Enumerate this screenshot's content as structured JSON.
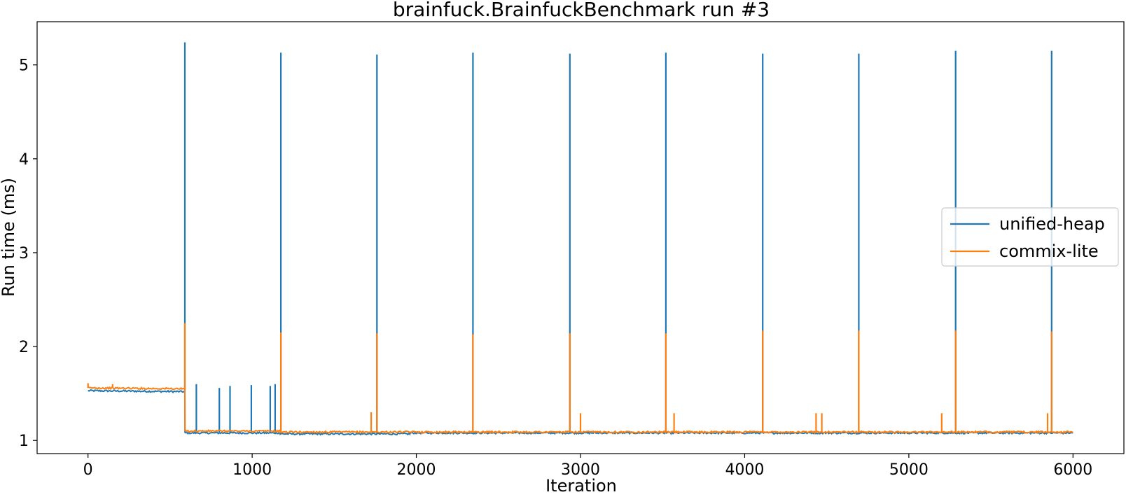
{
  "chart_data": {
    "type": "line",
    "title": "brainfuck.BrainfuckBenchmark run #3",
    "xlabel": "Iteration",
    "ylabel": "Run time (ms)",
    "xlim": [
      -310,
      6310
    ],
    "ylim": [
      0.86,
      5.46
    ],
    "xticks": [
      0,
      1000,
      2000,
      3000,
      4000,
      5000,
      6000
    ],
    "yticks": [
      1,
      2,
      3,
      4,
      5
    ],
    "grid": false,
    "legend_position": "center-right",
    "series": [
      {
        "name": "unified-heap",
        "color": "#1f77b4",
        "baseline": [
          [
            0,
            1.53
          ],
          [
            590,
            1.52
          ],
          [
            591,
            1.08
          ],
          [
            1170,
            1.08
          ],
          [
            1171,
            1.07
          ],
          [
            1960,
            1.07
          ],
          [
            1961,
            1.08
          ],
          [
            6000,
            1.08
          ]
        ],
        "spikes": [
          [
            590,
            5.24
          ],
          [
            660,
            1.6
          ],
          [
            800,
            1.56
          ],
          [
            865,
            1.58
          ],
          [
            995,
            1.59
          ],
          [
            1110,
            1.58
          ],
          [
            1140,
            1.6
          ],
          [
            1175,
            5.13
          ],
          [
            1760,
            5.11
          ],
          [
            2345,
            5.13
          ],
          [
            2935,
            5.12
          ],
          [
            3520,
            5.13
          ],
          [
            4110,
            5.12
          ],
          [
            4695,
            5.12
          ],
          [
            5285,
            5.15
          ],
          [
            5870,
            5.15
          ]
        ]
      },
      {
        "name": "commix-lite",
        "color": "#ff7f0e",
        "baseline": [
          [
            0,
            1.56
          ],
          [
            590,
            1.55
          ],
          [
            591,
            1.1
          ],
          [
            1170,
            1.1
          ],
          [
            1171,
            1.09
          ],
          [
            6000,
            1.09
          ]
        ],
        "spikes": [
          [
            0,
            1.61
          ],
          [
            150,
            1.6
          ],
          [
            590,
            2.25
          ],
          [
            1175,
            2.15
          ],
          [
            1725,
            1.3
          ],
          [
            1760,
            2.14
          ],
          [
            2345,
            2.13
          ],
          [
            2935,
            2.14
          ],
          [
            3000,
            1.29
          ],
          [
            3520,
            2.14
          ],
          [
            3570,
            1.29
          ],
          [
            4110,
            2.17
          ],
          [
            4435,
            1.29
          ],
          [
            4470,
            1.29
          ],
          [
            4695,
            2.17
          ],
          [
            5200,
            1.29
          ],
          [
            5285,
            2.17
          ],
          [
            5845,
            1.29
          ],
          [
            5870,
            2.16
          ]
        ]
      }
    ]
  }
}
